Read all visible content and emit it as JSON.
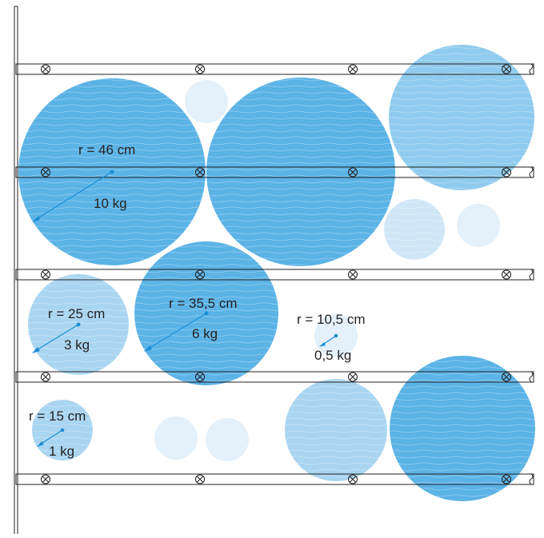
{
  "colors": {
    "water_dark": "#5bb3e6",
    "water_mid": "#8fcbee",
    "water_light": "#e4f1fb",
    "line": "#231f20",
    "arrow": "#1b8fd6"
  },
  "labels": {
    "lbl46": {
      "radius": "r = 46 cm",
      "weight": "10 kg"
    },
    "lbl25": {
      "radius": "r = 25 cm",
      "weight": "3 kg"
    },
    "lbl355": {
      "radius": "r = 35,5 cm",
      "weight": "6 kg"
    },
    "lbl105": {
      "radius": "r = 10,5 cm",
      "weight": "0,5 kg"
    },
    "lbl15": {
      "radius": "r = 15 cm",
      "weight": "1 kg"
    }
  },
  "icons": {
    "bolt": "bolt-icon"
  }
}
